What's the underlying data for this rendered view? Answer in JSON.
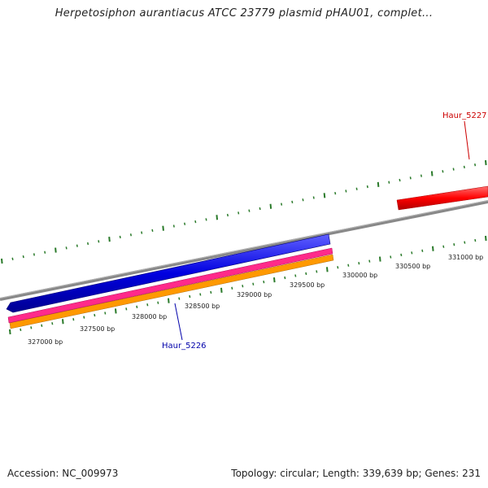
{
  "title": "Herpetosiphon aurantiacus ATCC 23779 plasmid pHAU01, complet...",
  "footer": {
    "accession": "Accession: NC_009973",
    "summary": "Topology: circular; Length: 339,639 bp; Genes: 231"
  },
  "colors": {
    "backbone": "#8a8a8a",
    "tick": "#2a7a2a",
    "cds": "#ff0000",
    "gene_blue": "#0000e0",
    "gene_pink": "#ff2a8a",
    "gene_orange": "#ff9900",
    "label_red": "#cc0000",
    "label_blue": "#0000aa"
  },
  "scale_labels": [
    {
      "text": "327000 bp"
    },
    {
      "text": "327500 bp"
    },
    {
      "text": "328000 bp"
    },
    {
      "text": "328500 bp"
    },
    {
      "text": "329000 bp"
    },
    {
      "text": "329500 bp"
    },
    {
      "text": "330000 bp"
    },
    {
      "text": "330500 bp"
    },
    {
      "text": "331000 bp"
    }
  ],
  "features": {
    "gene_top": {
      "name": "Haur_5227"
    },
    "gene_bottom": {
      "name": "Haur_5226"
    }
  }
}
